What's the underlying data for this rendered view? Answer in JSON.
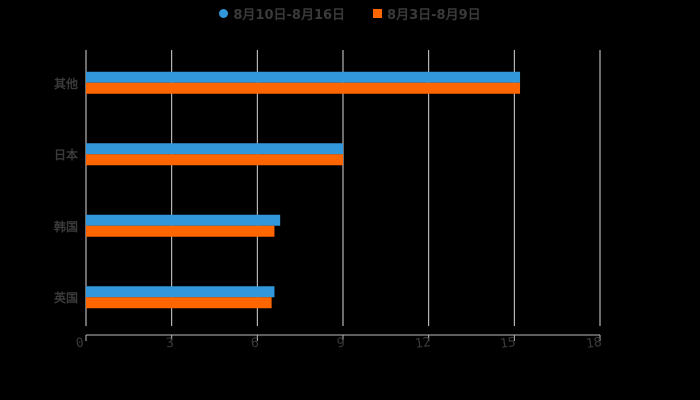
{
  "chart_data": {
    "type": "bar",
    "orientation": "horizontal",
    "title": "",
    "xlabel": "",
    "ylabel": "",
    "categories": [
      "其他",
      "日本",
      "韩国",
      "英国"
    ],
    "series": [
      {
        "name": "8月10日-8月16日",
        "color": "#3398DB",
        "values": [
          15.2,
          9.0,
          6.8,
          6.6
        ]
      },
      {
        "name": "8月3日-8月9日",
        "color": "#FF6600",
        "values": [
          15.2,
          9.0,
          6.6,
          6.5
        ]
      }
    ],
    "xlim": [
      0,
      18
    ],
    "xticks": [
      0,
      3,
      6,
      9,
      12,
      15,
      18
    ],
    "grid": true,
    "legend_position": "top"
  },
  "legend": {
    "items": [
      {
        "label": "8月10日-8月16日",
        "color": "#3398DB",
        "shape": "circle"
      },
      {
        "label": "8月3日-8月9日",
        "color": "#FF6600",
        "shape": "square"
      }
    ]
  },
  "axis": {
    "x_tick_labels": [
      "0",
      "3",
      "6",
      "9",
      "12",
      "15",
      "18"
    ],
    "y_labels": [
      "其他",
      "日本",
      "韩国",
      "英国"
    ]
  }
}
